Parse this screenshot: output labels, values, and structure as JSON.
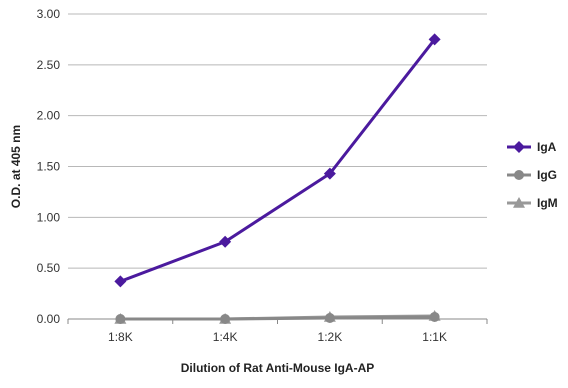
{
  "chart_data": {
    "type": "line",
    "categories": [
      "1:8K",
      "1:4K",
      "1:2K",
      "1:1K"
    ],
    "series": [
      {
        "name": "IgA",
        "values": [
          0.37,
          0.76,
          1.43,
          2.75
        ],
        "color": "#4B1A9E",
        "marker": "diamond"
      },
      {
        "name": "IgG",
        "values": [
          0.0,
          0.0,
          0.01,
          0.02
        ],
        "color": "#888888",
        "marker": "circle"
      },
      {
        "name": "IgM",
        "values": [
          0.0,
          0.0,
          0.02,
          0.03
        ],
        "color": "#999999",
        "marker": "triangle"
      }
    ],
    "xlabel": "Dilution of Rat Anti-Mouse IgA-AP",
    "ylabel": "O.D. at 405 nm",
    "ylim": [
      0,
      3
    ],
    "yticks": [
      "0.00",
      "0.50",
      "1.00",
      "1.50",
      "2.00",
      "2.50",
      "3.00"
    ],
    "grid": true,
    "legend_position": "right"
  }
}
